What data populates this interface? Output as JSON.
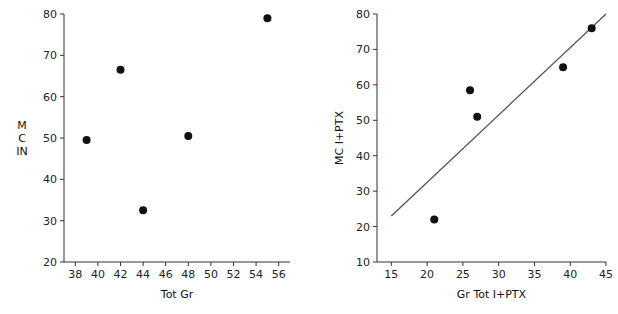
{
  "chart_data": [
    {
      "type": "scatter",
      "x": [
        39,
        42,
        44,
        48,
        55
      ],
      "values": [
        49.5,
        66.5,
        32.5,
        50.5,
        79
      ],
      "color": "#111111",
      "xlabel": "Tot Gr",
      "ylabel": [
        "M",
        "C",
        "IN"
      ],
      "xlim": [
        37,
        57
      ],
      "ylim": [
        20,
        80
      ],
      "xticks": [
        38,
        40,
        42,
        44,
        46,
        48,
        50,
        52,
        54,
        56
      ],
      "yticks": [
        20,
        30,
        40,
        50,
        60,
        70,
        80
      ],
      "grid": false
    },
    {
      "type": "scatter",
      "series": [
        {
          "type": "scatter",
          "x": [
            21,
            26,
            27,
            39,
            43
          ],
          "values": [
            22,
            58.5,
            51,
            65,
            76
          ],
          "color": "#111111"
        },
        {
          "type": "line",
          "x": [
            15,
            45
          ],
          "values": [
            23,
            80
          ],
          "color": "#555555"
        }
      ],
      "xlabel": "Gr Tot I+PTX",
      "ylabel": "MC I+PTX",
      "xlim": [
        13,
        45
      ],
      "ylim": [
        10,
        80
      ],
      "xticks": [
        15,
        20,
        25,
        30,
        35,
        40,
        45
      ],
      "yticks": [
        10,
        20,
        30,
        40,
        50,
        60,
        70,
        80
      ],
      "grid": false
    }
  ]
}
